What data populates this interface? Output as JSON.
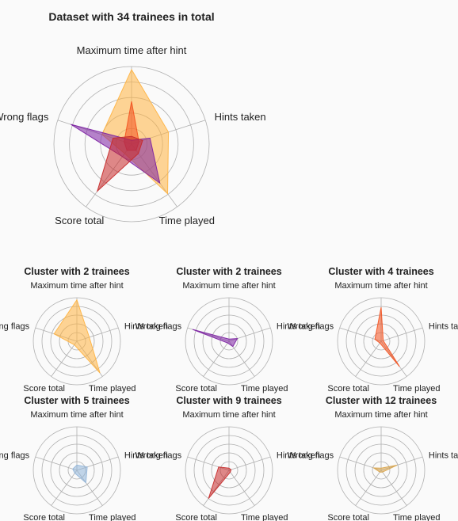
{
  "colors": {
    "orange": "#ffb23f",
    "red": "#c62828",
    "purple": "#7b1fa2",
    "coral": "#f4511e",
    "lightblue": "#90b4d8",
    "tan": "#d9a44a",
    "grid": "#b0b0b0"
  },
  "chart_data": [
    {
      "type": "radar",
      "title": "Dataset with 34 trainees in total",
      "axes": [
        "Maximum time after hint",
        "Hints taken",
        "Time played",
        "Score total",
        "Wrong flags"
      ],
      "rmax": 1,
      "rings": 5,
      "series": [
        {
          "color": "orange",
          "values": [
            0.96,
            0.5,
            0.79,
            0.15,
            0.4
          ]
        },
        {
          "color": "coral",
          "values": [
            0.55,
            0.1,
            0.1,
            0.1,
            0.1
          ]
        },
        {
          "color": "purple",
          "values": [
            0.05,
            0.25,
            0.62,
            0.2,
            0.82
          ]
        },
        {
          "color": "red",
          "values": [
            0.1,
            0.15,
            0.15,
            0.75,
            0.25
          ]
        }
      ]
    },
    {
      "type": "radar",
      "title": "Cluster with 2 trainees",
      "axes": [
        "Maximum time after hint",
        "Hints taken",
        "Time played",
        "Score total",
        "Wrong flags"
      ],
      "rmax": 1,
      "rings": 5,
      "series": [
        {
          "color": "orange",
          "values": [
            0.95,
            0.3,
            0.9,
            0.1,
            0.55
          ]
        }
      ]
    },
    {
      "type": "radar",
      "title": "Cluster with 2 trainees",
      "axes": [
        "Maximum time after hint",
        "Hints taken",
        "Time played",
        "Score total",
        "Wrong flags"
      ],
      "rmax": 1,
      "rings": 5,
      "series": [
        {
          "color": "purple",
          "values": [
            0.05,
            0.2,
            0.15,
            0.05,
            0.88
          ]
        }
      ]
    },
    {
      "type": "radar",
      "title": "Cluster with 4 trainees",
      "axes": [
        "Maximum time after hint",
        "Hints taken",
        "Time played",
        "Score total",
        "Wrong flags"
      ],
      "rmax": 1,
      "rings": 5,
      "series": [
        {
          "color": "coral",
          "values": [
            0.78,
            0.05,
            0.72,
            0.05,
            0.15
          ]
        }
      ]
    },
    {
      "type": "radar",
      "title": "Cluster with 5 trainees",
      "axes": [
        "Maximum time after hint",
        "Hints taken",
        "Time played",
        "Score total",
        "Wrong flags"
      ],
      "rmax": 1,
      "rings": 5,
      "series": [
        {
          "color": "lightblue",
          "values": [
            0.12,
            0.25,
            0.35,
            0.08,
            0.1
          ]
        }
      ]
    },
    {
      "type": "radar",
      "title": "Cluster with 9 trainees",
      "axes": [
        "Maximum time after hint",
        "Hints taken",
        "Time played",
        "Score total",
        "Wrong flags"
      ],
      "rmax": 1,
      "rings": 5,
      "series": [
        {
          "color": "red",
          "values": [
            0.05,
            0.05,
            0.05,
            0.8,
            0.25
          ]
        }
      ]
    },
    {
      "type": "radar",
      "title": "Cluster with 12 trainees",
      "axes": [
        "Maximum time after hint",
        "Hints taken",
        "Time played",
        "Score total",
        "Wrong flags"
      ],
      "rmax": 1,
      "rings": 5,
      "series": [
        {
          "color": "tan",
          "values": [
            0.05,
            0.38,
            0.05,
            0.05,
            0.18
          ]
        }
      ]
    }
  ]
}
